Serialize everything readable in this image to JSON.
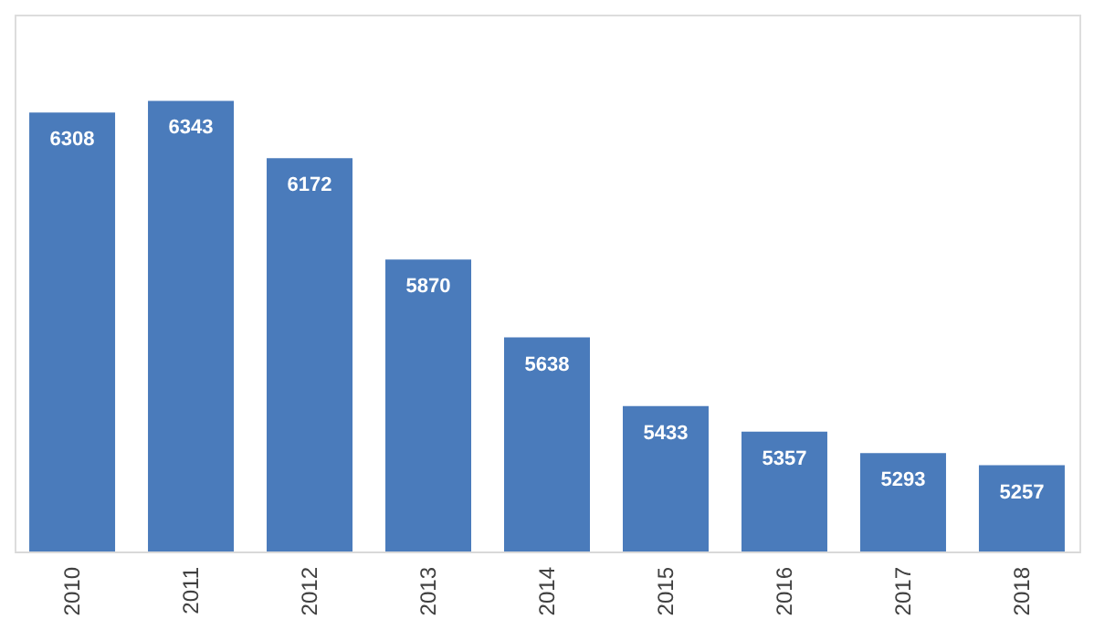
{
  "chart_data": {
    "type": "bar",
    "categories": [
      "2010",
      "2011",
      "2012",
      "2013",
      "2014",
      "2015",
      "2016",
      "2017",
      "2018"
    ],
    "values": [
      6308,
      6343,
      6172,
      5870,
      5638,
      5433,
      5357,
      5293,
      5257
    ],
    "color": "#4a7bbb",
    "ylim": [
      5000,
      6600
    ],
    "data_labels": true,
    "grid": false,
    "tick_labels": "x"
  }
}
